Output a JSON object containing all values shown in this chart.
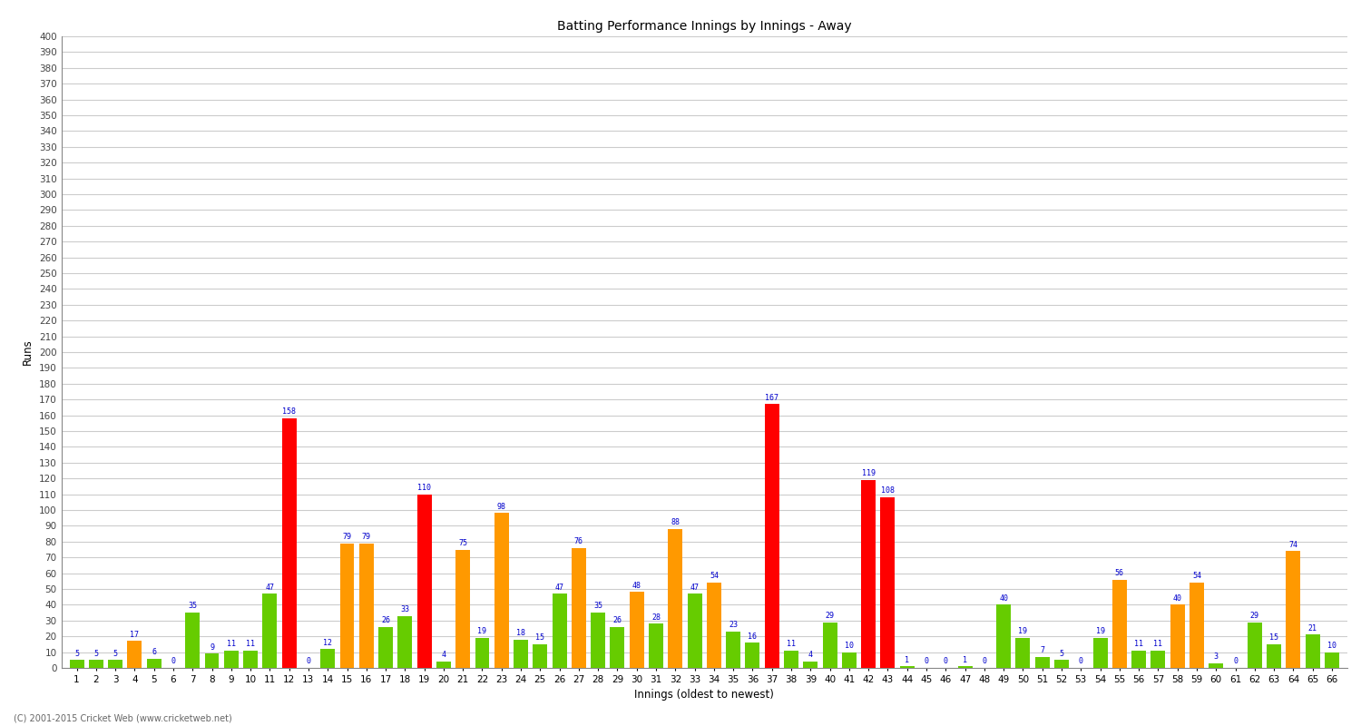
{
  "title": "Batting Performance Innings by Innings - Away",
  "xlabel": "Innings (oldest to newest)",
  "ylabel": "Runs",
  "background_color": "#ffffff",
  "grid_color": "#cccccc",
  "innings": [
    1,
    2,
    3,
    4,
    5,
    6,
    7,
    8,
    9,
    10,
    11,
    12,
    13,
    14,
    15,
    16,
    17,
    18,
    19,
    20,
    21,
    22,
    23,
    24,
    25,
    26,
    27,
    28,
    29,
    30,
    31,
    32,
    33,
    34,
    35,
    36,
    37,
    38,
    39,
    40,
    41,
    42,
    43,
    44,
    45,
    46,
    47,
    48,
    49,
    50,
    51,
    52,
    53,
    54,
    55,
    56,
    57,
    58,
    59,
    60,
    61,
    62,
    63,
    64,
    65,
    66
  ],
  "values": [
    5,
    5,
    5,
    17,
    6,
    0,
    35,
    9,
    11,
    11,
    47,
    158,
    0,
    12,
    79,
    79,
    26,
    33,
    110,
    4,
    75,
    19,
    98,
    18,
    15,
    47,
    76,
    35,
    26,
    48,
    28,
    88,
    47,
    54,
    23,
    16,
    167,
    11,
    4,
    29,
    10,
    119,
    108,
    1,
    0,
    0,
    1,
    0,
    40,
    19,
    7,
    5,
    0,
    19,
    56,
    11,
    11,
    40,
    54,
    3,
    0,
    29,
    15,
    74,
    21,
    10
  ],
  "colors": [
    "#66cc00",
    "#66cc00",
    "#66cc00",
    "#ff9900",
    "#66cc00",
    "#66cc00",
    "#66cc00",
    "#66cc00",
    "#66cc00",
    "#66cc00",
    "#66cc00",
    "#ff0000",
    "#66cc00",
    "#66cc00",
    "#ff9900",
    "#ff9900",
    "#66cc00",
    "#66cc00",
    "#ff0000",
    "#66cc00",
    "#ff9900",
    "#66cc00",
    "#ff9900",
    "#66cc00",
    "#66cc00",
    "#66cc00",
    "#ff9900",
    "#66cc00",
    "#66cc00",
    "#ff9900",
    "#66cc00",
    "#ff9900",
    "#66cc00",
    "#ff9900",
    "#66cc00",
    "#66cc00",
    "#ff0000",
    "#66cc00",
    "#66cc00",
    "#66cc00",
    "#66cc00",
    "#ff0000",
    "#ff0000",
    "#66cc00",
    "#66cc00",
    "#66cc00",
    "#66cc00",
    "#66cc00",
    "#66cc00",
    "#66cc00",
    "#66cc00",
    "#66cc00",
    "#66cc00",
    "#66cc00",
    "#ff9900",
    "#66cc00",
    "#66cc00",
    "#ff9900",
    "#ff9900",
    "#66cc00",
    "#66cc00",
    "#66cc00",
    "#66cc00",
    "#ff9900",
    "#66cc00",
    "#66cc00"
  ],
  "ylim": [
    0,
    400
  ],
  "yticks": [
    0,
    10,
    20,
    30,
    40,
    50,
    60,
    70,
    80,
    90,
    100,
    110,
    120,
    130,
    140,
    150,
    160,
    170,
    180,
    190,
    200,
    210,
    220,
    230,
    240,
    250,
    260,
    270,
    280,
    290,
    300,
    310,
    320,
    330,
    340,
    350,
    360,
    370,
    380,
    390,
    400
  ],
  "footer": "(C) 2001-2015 Cricket Web (www.cricketweb.net)",
  "label_color": "#0000cc",
  "label_fontsize": 6.0,
  "axis_label_fontsize": 7.5,
  "title_fontsize": 10,
  "bar_width": 0.75
}
